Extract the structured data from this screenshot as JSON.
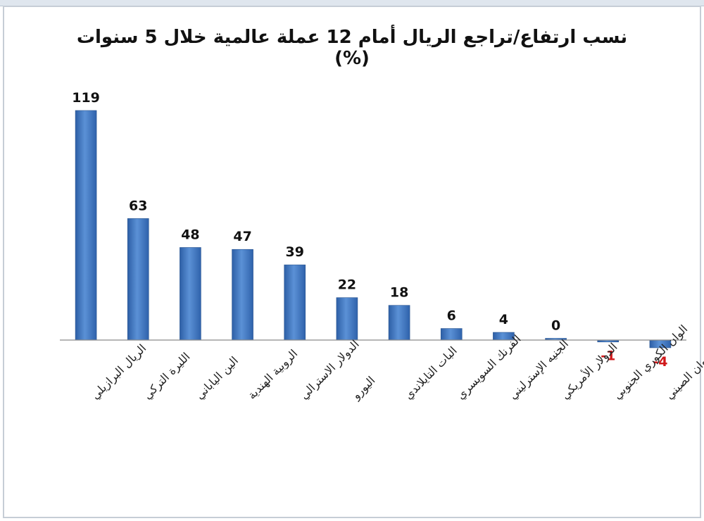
{
  "chart_data": {
    "type": "bar",
    "title": "نسب ارتفاع/تراجع الريال أمام 12 عملة عالمية خلال 5 سنوات (%)",
    "categories": [
      "الريال البرازيلي",
      "الليرة التركي",
      "الين الياباني",
      "الروبية الهندية",
      "الدولار الاسترالي",
      "اليورو",
      "البات التايلاندي",
      "الفرنك السويسري",
      "الجنيه الإسترليني",
      "الدولار الأمريكي",
      "الوان الكوري الجنوبي",
      "اليوان الصيني"
    ],
    "values": [
      119,
      63,
      48,
      47,
      39,
      22,
      18,
      6,
      4,
      0,
      -1,
      -4
    ],
    "data_labels": [
      "119",
      "63",
      "48",
      "47",
      "39",
      "22",
      "18",
      "6",
      "4",
      "0",
      "-1",
      "-4"
    ],
    "ylim": [
      -10,
      125
    ],
    "xlabel": "",
    "ylabel": "",
    "grid": false,
    "legend": "none",
    "colors": {
      "bar": "#4a7fc8",
      "positive_label": "#111111",
      "negative_label": "#d0191b"
    }
  }
}
